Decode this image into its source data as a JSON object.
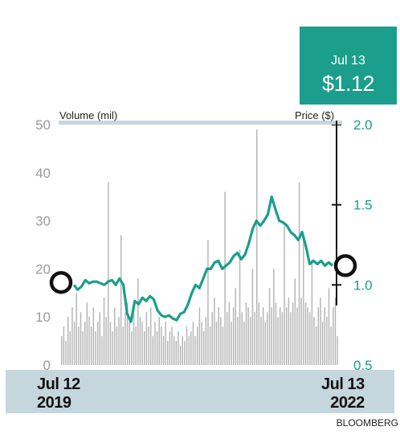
{
  "callout": {
    "date": "Jul 13",
    "price": "$1.12"
  },
  "source": "BLOOMBERG",
  "chart_data": {
    "type": "bar+line",
    "left_axis": {
      "label": "Volume (mil)",
      "range": [
        0,
        50
      ],
      "ticks": [
        "0",
        "10",
        "20",
        "30",
        "40",
        "50"
      ]
    },
    "right_axis": {
      "label": "Price ($)",
      "range": [
        0.5,
        2.0
      ],
      "ticks": [
        "0.5",
        "1.0",
        "1.5",
        "2.0"
      ]
    },
    "x_start": {
      "line1": "Jul 12",
      "line2": "2019"
    },
    "x_end": {
      "line1": "Jul 13",
      "line2": "2022"
    },
    "start_price": 1.0,
    "end_price": 1.12,
    "price_series": [
      1.0,
      0.97,
      0.99,
      1.03,
      1.01,
      1.02,
      1.02,
      1.01,
      1.0,
      1.02,
      1.03,
      1.0,
      1.04,
      1.0,
      0.82,
      0.77,
      0.9,
      0.88,
      0.92,
      0.9,
      0.93,
      0.91,
      0.84,
      0.81,
      0.8,
      0.81,
      0.79,
      0.78,
      0.82,
      0.83,
      0.88,
      0.95,
      1.0,
      0.98,
      1.04,
      1.1,
      1.1,
      1.14,
      1.15,
      1.1,
      1.12,
      1.14,
      1.18,
      1.2,
      1.16,
      1.19,
      1.26,
      1.35,
      1.4,
      1.37,
      1.4,
      1.44,
      1.55,
      1.47,
      1.4,
      1.39,
      1.37,
      1.33,
      1.31,
      1.28,
      1.33,
      1.24,
      1.13,
      1.15,
      1.13,
      1.15,
      1.12,
      1.14,
      1.12
    ],
    "volume_series": [
      6,
      8,
      5,
      10,
      7,
      12,
      9,
      15,
      8,
      11,
      7,
      9,
      13,
      10,
      8,
      12,
      7,
      9,
      11,
      6,
      14,
      10,
      38,
      9,
      7,
      12,
      8,
      10,
      27,
      8,
      11,
      13,
      9,
      7,
      12,
      8,
      18,
      10,
      9,
      7,
      11,
      8,
      12,
      6,
      9,
      7,
      10,
      8,
      6,
      9,
      5,
      7,
      8,
      6,
      5,
      7,
      4,
      6,
      5,
      8,
      6,
      7,
      9,
      6,
      8,
      12,
      9,
      7,
      10,
      26,
      8,
      11,
      14,
      9,
      12,
      10,
      8,
      36,
      11,
      13,
      9,
      12,
      16,
      10,
      24,
      11,
      9,
      13,
      12,
      10,
      20,
      11,
      49,
      13,
      10,
      12,
      9,
      11,
      16,
      12,
      20,
      13,
      10,
      12,
      11,
      29,
      12,
      14,
      11,
      13,
      18,
      12,
      38,
      14,
      26,
      13,
      12,
      11,
      22,
      10,
      8,
      12,
      14,
      9,
      12,
      10,
      16,
      8,
      12,
      14,
      6
    ]
  }
}
